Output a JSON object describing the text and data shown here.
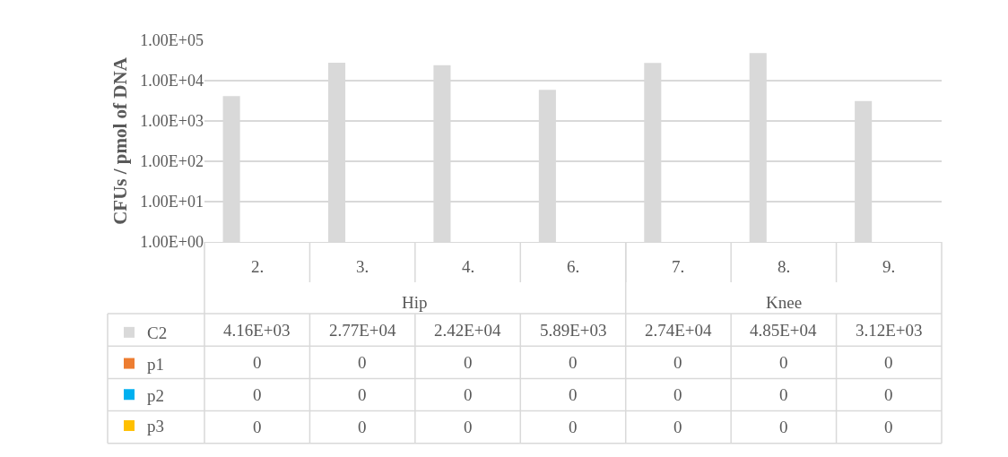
{
  "chart_data": {
    "type": "bar",
    "ylabel": "CFUs / pmol of DNA",
    "categories": [
      "2.",
      "3.",
      "4.",
      "6.",
      "7.",
      "8.",
      "9."
    ],
    "annotations": [
      "Hip",
      "Knee"
    ],
    "series": [
      {
        "name": "C2",
        "color": "#d9d9d9",
        "values": [
          4160,
          27700,
          24200,
          5890,
          27400,
          48500,
          3120
        ],
        "value_labels": [
          "4.16E+03",
          "2.77E+04",
          "2.42E+04",
          "5.89E+03",
          "2.74E+04",
          "4.85E+04",
          "3.12E+03"
        ]
      },
      {
        "name": "p1",
        "color": "#ed7d31",
        "values": [
          null,
          null,
          null,
          null,
          null,
          null,
          null
        ],
        "value_labels": [
          "0",
          "0",
          "0",
          "0",
          "0",
          "0",
          "0"
        ]
      },
      {
        "name": "p2",
        "color": "#00b0f0",
        "values": [
          null,
          null,
          null,
          null,
          null,
          null,
          null
        ],
        "value_labels": [
          "0",
          "0",
          "0",
          "0",
          "0",
          "0",
          "0"
        ]
      },
      {
        "name": "p3",
        "color": "#ffc000",
        "values": [
          null,
          null,
          null,
          null,
          null,
          null,
          null
        ],
        "value_labels": [
          "0",
          "0",
          "0",
          "0",
          "0",
          "0",
          "0"
        ]
      }
    ],
    "log": true,
    "ylim": [
      1,
      100000
    ],
    "yticks": [
      {
        "value": 1,
        "label": "1.00E+00"
      },
      {
        "value": 10,
        "label": "1.00E+01"
      },
      {
        "value": 100,
        "label": "1.00E+02"
      },
      {
        "value": 1000,
        "label": "1.00E+03"
      },
      {
        "value": 10000,
        "label": "1.00E+04"
      },
      {
        "value": 100000,
        "label": "1.00E+05"
      }
    ],
    "grid": "y",
    "legend": "bottom left"
  }
}
